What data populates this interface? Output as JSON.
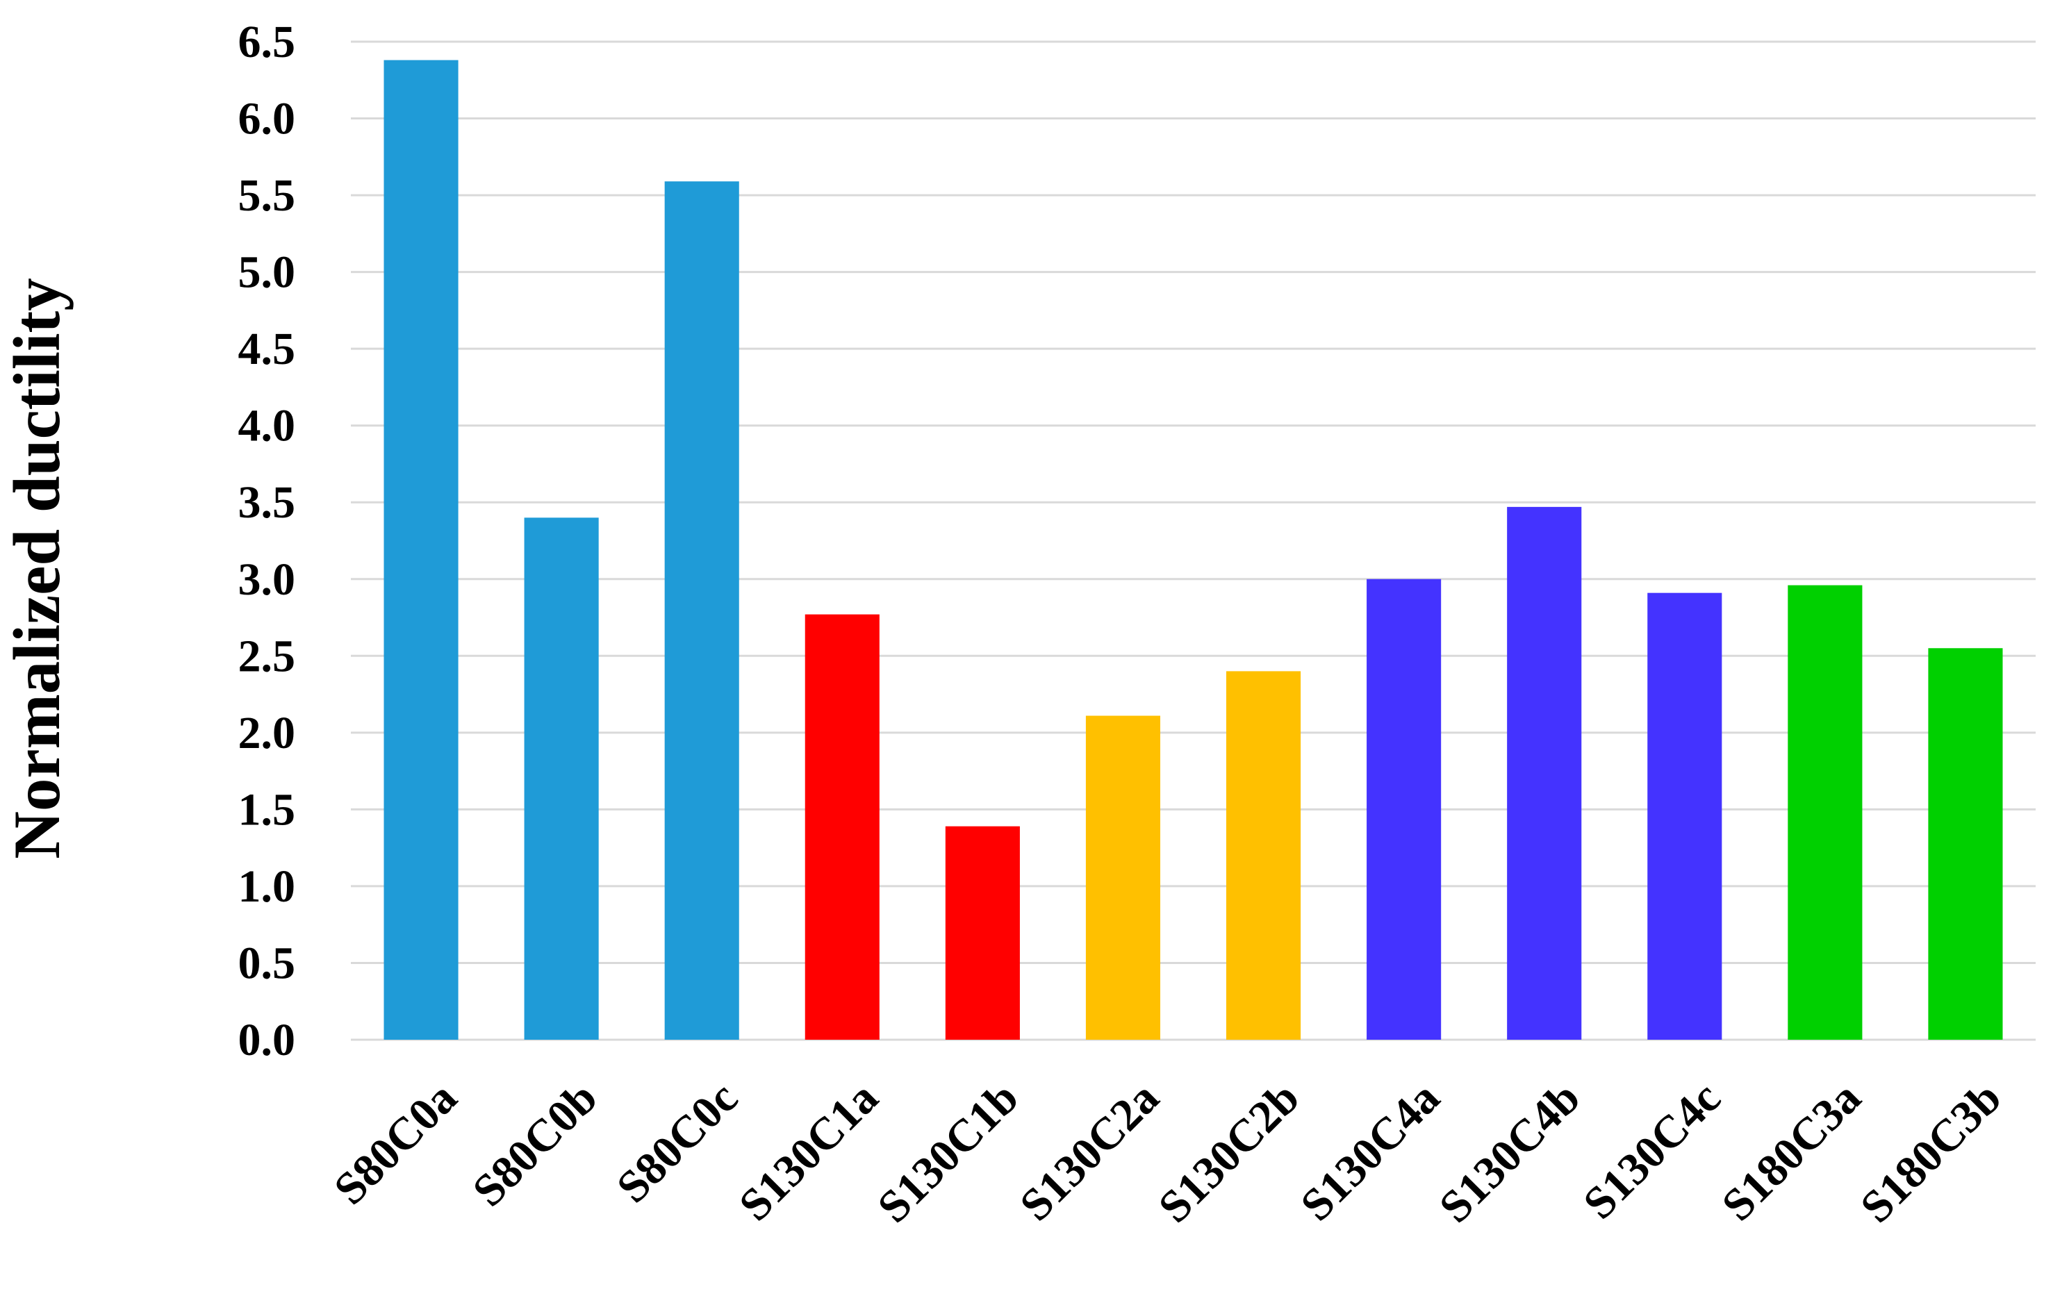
{
  "chart_data": {
    "type": "bar",
    "ylabel": "Normalized ductility",
    "xlabel": "",
    "title": "",
    "ylim": [
      0.0,
      6.5
    ],
    "yticks": [
      "0.0",
      "0.5",
      "1.0",
      "1.5",
      "2.0",
      "2.5",
      "3.0",
      "3.5",
      "4.0",
      "4.5",
      "5.0",
      "5.5",
      "6.0",
      "6.5"
    ],
    "grid": true,
    "categories": [
      "S80C0a",
      "S80C0b",
      "S80C0c",
      "S130C1a",
      "S130C1b",
      "S130C2a",
      "S130C2b",
      "S130C4a",
      "S130C4b",
      "S130C4c",
      "S180C3a",
      "S180C3b"
    ],
    "values": [
      6.38,
      3.4,
      5.59,
      2.77,
      1.39,
      2.11,
      2.4,
      3.0,
      3.47,
      2.91,
      2.96,
      2.55
    ],
    "bar_colors": [
      "#1f9bd7",
      "#1f9bd7",
      "#1f9bd7",
      "#ff0000",
      "#ff0000",
      "#ffc000",
      "#ffc000",
      "#4433ff",
      "#4433ff",
      "#4433ff",
      "#00d000",
      "#00d000"
    ]
  }
}
